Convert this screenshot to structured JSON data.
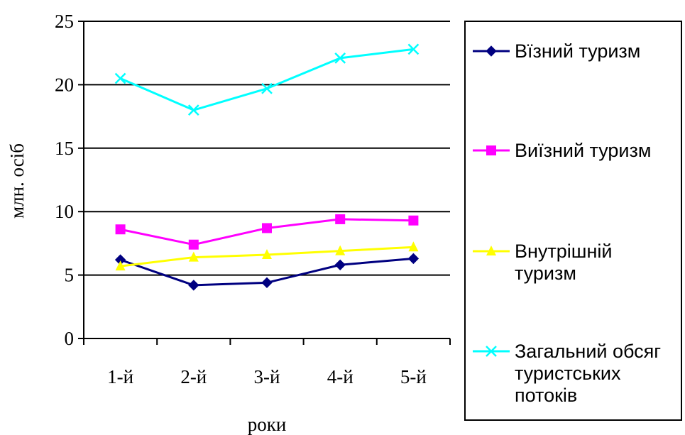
{
  "chart_data": {
    "type": "line",
    "title": "",
    "xlabel": "роки",
    "ylabel": "млн. осіб",
    "categories": [
      "1-й",
      "2-й",
      "3-й",
      "4-й",
      "5-й"
    ],
    "ylim": [
      0,
      25
    ],
    "yticks": [
      0,
      5,
      10,
      15,
      20,
      25
    ],
    "grid": "horizontal",
    "legend_position": "right",
    "series": [
      {
        "name": "Вїзний туризм",
        "values": [
          6.2,
          4.2,
          4.4,
          5.8,
          6.3
        ],
        "color": "#000080",
        "marker": "diamond"
      },
      {
        "name": "Виїзний туризм",
        "values": [
          8.6,
          7.4,
          8.7,
          9.4,
          9.3
        ],
        "color": "#FF00FF",
        "marker": "square"
      },
      {
        "name": "Внутрішній туризм",
        "legend_lines": [
          "Внутрішній",
          "туризм"
        ],
        "values": [
          5.7,
          6.4,
          6.6,
          6.9,
          7.2
        ],
        "color": "#FFFF00",
        "marker": "triangle"
      },
      {
        "name": "Загальний обсяг туристських потоків",
        "legend_lines": [
          "Загальний обсяг",
          "туристських",
          "потоків"
        ],
        "values": [
          20.5,
          18.0,
          19.7,
          22.1,
          22.8
        ],
        "color": "#00FFFF",
        "marker": "x"
      }
    ]
  }
}
